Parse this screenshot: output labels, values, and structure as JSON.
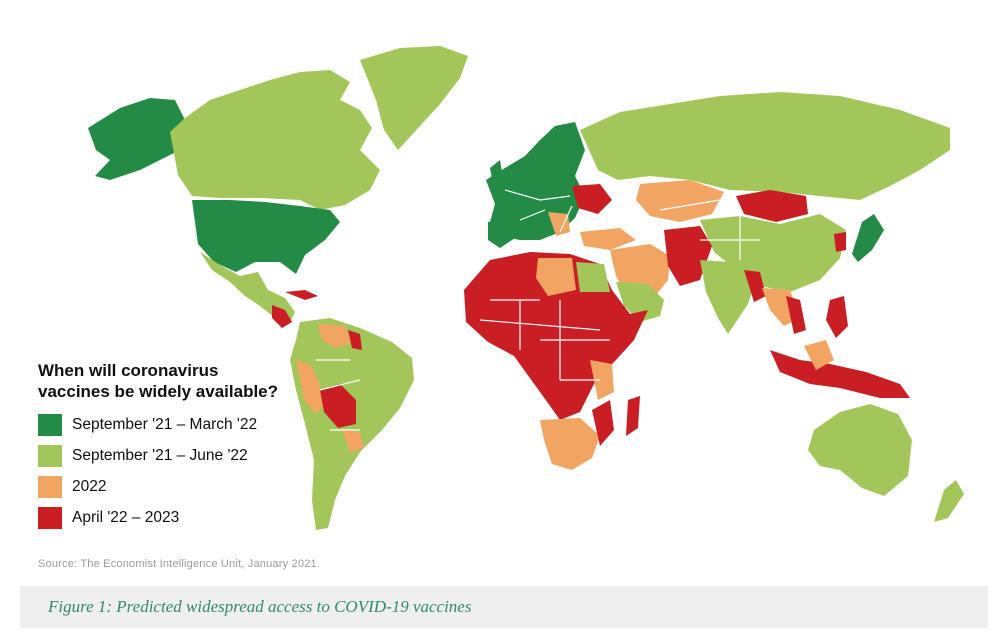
{
  "legend": {
    "title_line1": "When will coronavirus",
    "title_line2": "vaccines be widely available?",
    "items": [
      {
        "label": "September '21 – March '22",
        "color": "#238b45"
      },
      {
        "label": "September '21 – June '22",
        "color": "#a3c65a"
      },
      {
        "label": "2022",
        "color": "#f2a563"
      },
      {
        "label": "April '22 – 2023",
        "color": "#c81e24"
      }
    ]
  },
  "source": "Source: The Economist Intelligence Unit, January 2021.",
  "caption": "Figure 1: Predicted widespread access to COVID-19 vaccines"
}
